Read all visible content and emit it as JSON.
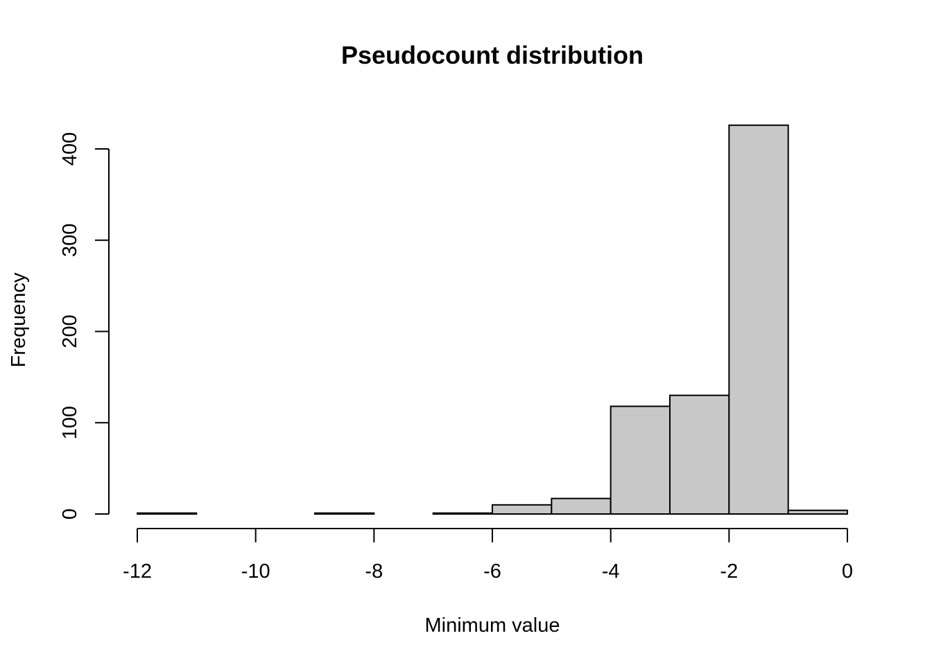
{
  "chart_data": {
    "type": "bar",
    "title": "Pseudocount distribution",
    "xlabel": "Minimum value",
    "ylabel": "Frequency",
    "bar_color": "#c8c8c8",
    "border_color": "#000000",
    "bins": [
      {
        "from": -12,
        "to": -11,
        "count": 1
      },
      {
        "from": -11,
        "to": -10,
        "count": 0
      },
      {
        "from": -10,
        "to": -9,
        "count": 0
      },
      {
        "from": -9,
        "to": -8,
        "count": 1
      },
      {
        "from": -8,
        "to": -7,
        "count": 0
      },
      {
        "from": -7,
        "to": -6,
        "count": 1
      },
      {
        "from": -6,
        "to": -5,
        "count": 10
      },
      {
        "from": -5,
        "to": -4,
        "count": 17
      },
      {
        "from": -4,
        "to": -3,
        "count": 118
      },
      {
        "from": -3,
        "to": -2,
        "count": 130
      },
      {
        "from": -2,
        "to": -1,
        "count": 426
      },
      {
        "from": -1,
        "to": 0,
        "count": 4
      }
    ],
    "xlim": [
      -12,
      0
    ],
    "ylim": [
      0,
      426
    ],
    "x_ticks": [
      {
        "value": -12,
        "label": "-12"
      },
      {
        "value": -10,
        "label": "-10"
      },
      {
        "value": -8,
        "label": "-8"
      },
      {
        "value": -6,
        "label": "-6"
      },
      {
        "value": -4,
        "label": "-4"
      },
      {
        "value": -2,
        "label": "-2"
      },
      {
        "value": 0,
        "label": "0"
      }
    ],
    "y_ticks": [
      {
        "value": 0,
        "label": "0"
      },
      {
        "value": 100,
        "label": "100"
      },
      {
        "value": 200,
        "label": "200"
      },
      {
        "value": 300,
        "label": "300"
      },
      {
        "value": 400,
        "label": "400"
      }
    ]
  }
}
